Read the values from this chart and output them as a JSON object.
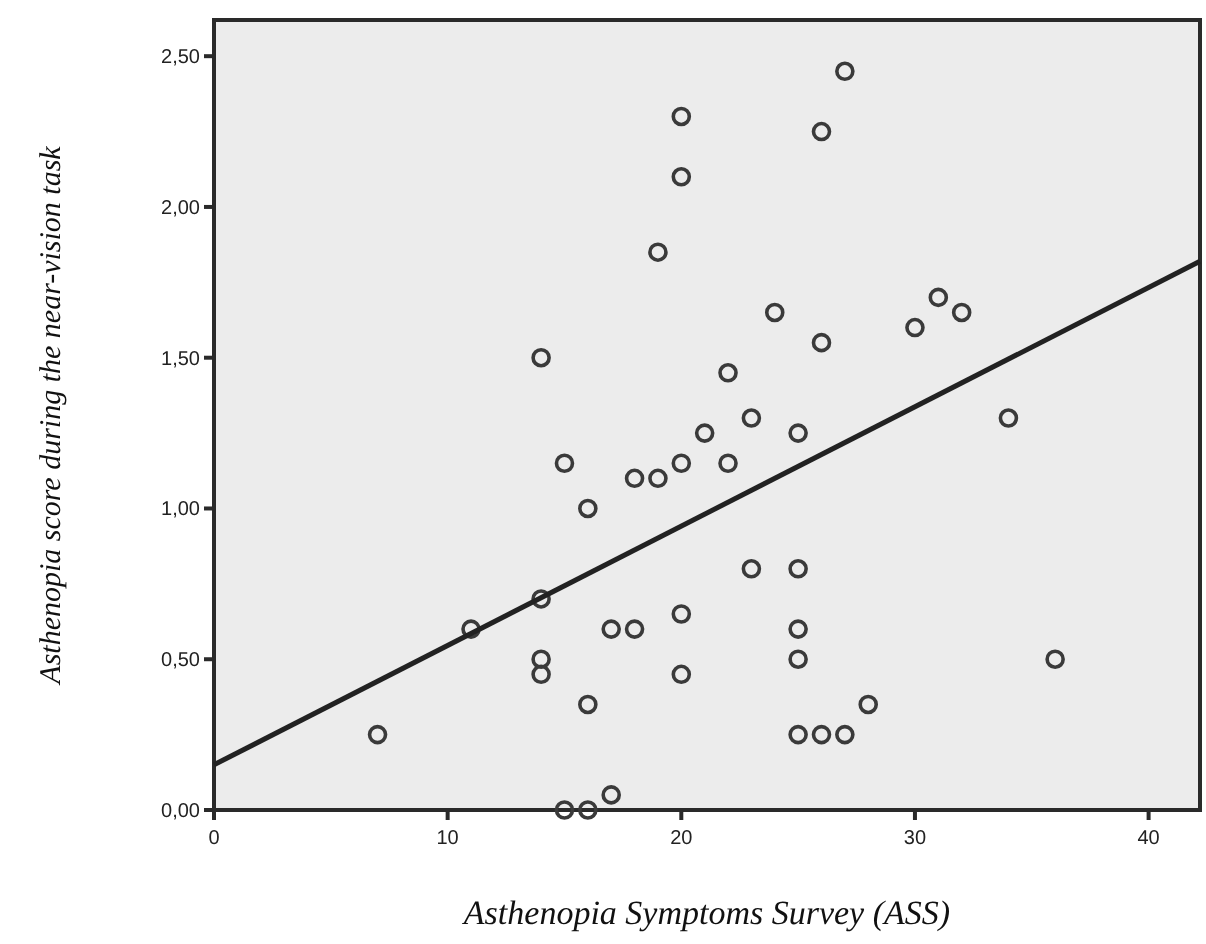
{
  "chart_data": {
    "type": "scatter",
    "xlabel": "Asthenopia Symptoms Survey (ASS)",
    "ylabel": "Asthenopia score during the near-vision task",
    "xlim": [
      0,
      42.2
    ],
    "ylim": [
      0,
      2.62
    ],
    "xticks": [
      0,
      10,
      20,
      30,
      40
    ],
    "yticks": [
      {
        "value": 0,
        "label": "0,00"
      },
      {
        "value": 0.5,
        "label": "0,50"
      },
      {
        "value": 1,
        "label": "1,00"
      },
      {
        "value": 1.5,
        "label": "1,50"
      },
      {
        "value": 2,
        "label": "2,00"
      },
      {
        "value": 2.5,
        "label": "2,50"
      }
    ],
    "grid": false,
    "marker": "circle",
    "series": [
      {
        "color": "#3a3a3a",
        "x": [
          7,
          11,
          14,
          14,
          14,
          14,
          15,
          15,
          16,
          16,
          16,
          17,
          17,
          18,
          18,
          19,
          19,
          20,
          20,
          20,
          20,
          20,
          21,
          22,
          22,
          23,
          23,
          24,
          25,
          25,
          25,
          25,
          25,
          26,
          26,
          26,
          27,
          27,
          28,
          30,
          31,
          32,
          34,
          36
        ],
        "values": [
          0.25,
          0.6,
          0.7,
          1.5,
          0.5,
          0.45,
          1.15,
          0,
          1.0,
          0.35,
          0,
          0.6,
          0.05,
          1.1,
          0.6,
          1.1,
          1.85,
          2.3,
          2.1,
          1.15,
          0.65,
          0.45,
          1.25,
          1.45,
          1.15,
          1.3,
          0.8,
          1.65,
          1.25,
          0.8,
          0.6,
          0.5,
          0.25,
          2.25,
          1.55,
          0.25,
          2.45,
          0.25,
          0.35,
          1.6,
          1.7,
          1.65,
          1.3,
          0.5
        ]
      },
      {
        "type": "line",
        "color": "#222222",
        "marker": "none",
        "x": [
          0,
          42.2
        ],
        "values": [
          0.15,
          1.82
        ]
      }
    ]
  }
}
